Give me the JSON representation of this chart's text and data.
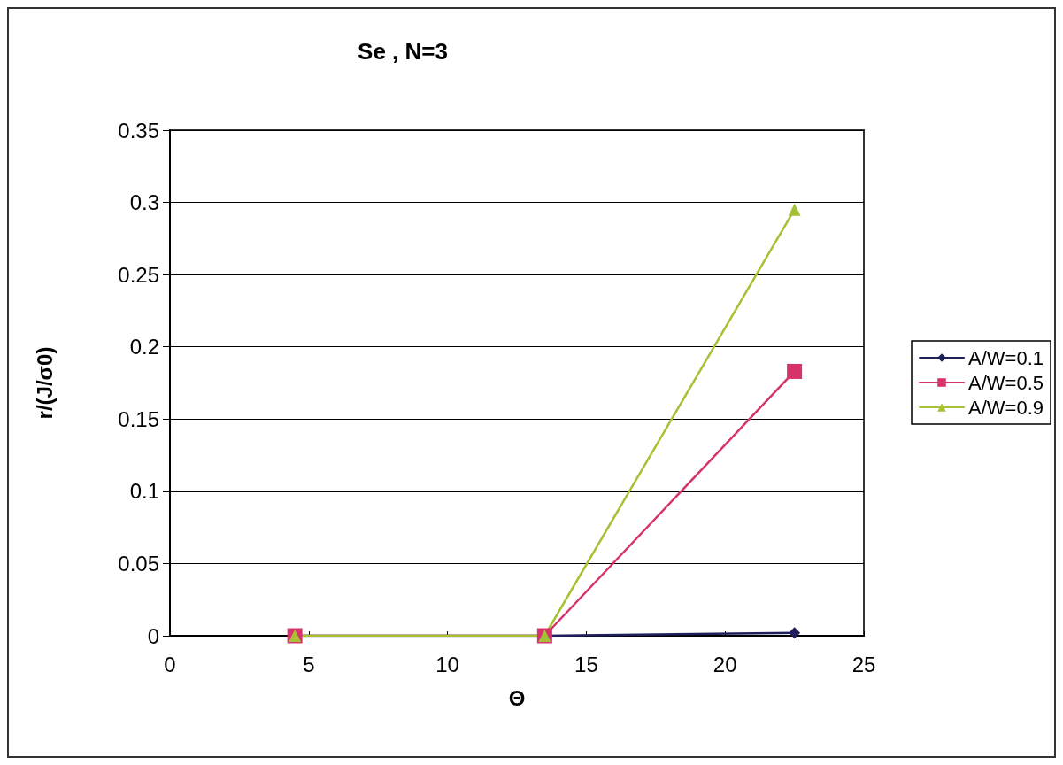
{
  "chart_data": {
    "type": "line",
    "title": "Se , N=3",
    "xlabel": "Θ",
    "ylabel": "r/(J/σ0)",
    "x": [
      4.5,
      13.5,
      22.5
    ],
    "series": [
      {
        "name": "A/W=0.1",
        "color": "#1f1f5c",
        "marker": "diamond",
        "values": [
          0,
          0,
          0.002
        ]
      },
      {
        "name": "A/W=0.5",
        "color": "#d6336c",
        "marker": "square",
        "values": [
          0,
          0,
          0.183
        ]
      },
      {
        "name": "A/W=0.9",
        "color": "#a5c234",
        "marker": "triangle",
        "values": [
          0,
          0,
          0.295
        ]
      }
    ],
    "xlim": [
      0,
      25
    ],
    "xticks": [
      0,
      5,
      10,
      15,
      20,
      25
    ],
    "ylim": [
      0,
      0.35
    ],
    "yticks": [
      0,
      0.05,
      0.1,
      0.15,
      0.2,
      0.25,
      0.3,
      0.35
    ],
    "grid": "y",
    "legend": "right"
  }
}
